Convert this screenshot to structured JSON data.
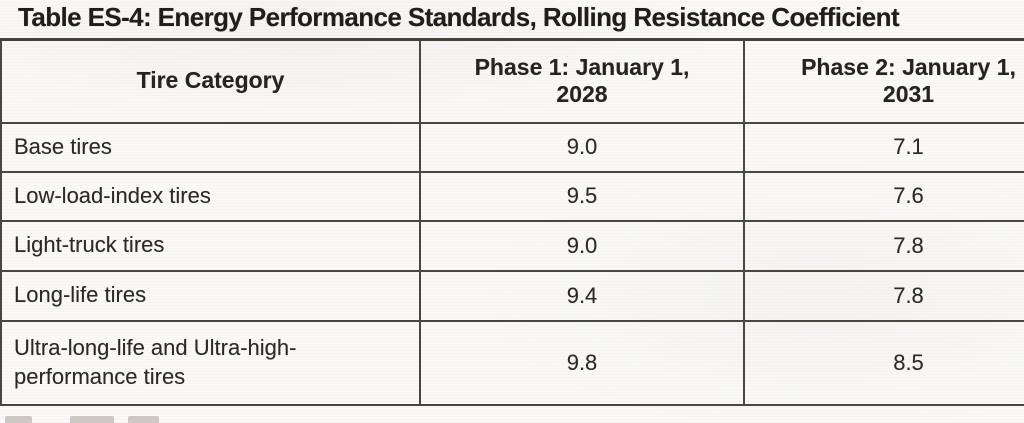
{
  "title": "Table ES-4: Energy Performance Standards, Rolling Resistance Coefficient",
  "table": {
    "columns": [
      {
        "label": "Tire Category"
      },
      {
        "line1": "Phase 1: January 1,",
        "line2": "2028"
      },
      {
        "line1": "Phase 2: January 1,",
        "line2": "2031"
      }
    ],
    "rows": [
      {
        "category": "Base tires",
        "phase1": "9.0",
        "phase2": "7.1"
      },
      {
        "category": "Low-load-index tires",
        "phase1": "9.5",
        "phase2": "7.6"
      },
      {
        "category": "Light-truck tires",
        "phase1": "9.0",
        "phase2": "7.8"
      },
      {
        "category": "Long-life tires",
        "phase1": "9.4",
        "phase2": "7.8"
      },
      {
        "category": "Ultra-long-life and Ultra-high-performance tires",
        "phase1": "9.8",
        "phase2": "8.5"
      }
    ]
  },
  "colors": {
    "background": "#faf9f7",
    "text": "#2c2a26",
    "border": "#4a4741"
  }
}
